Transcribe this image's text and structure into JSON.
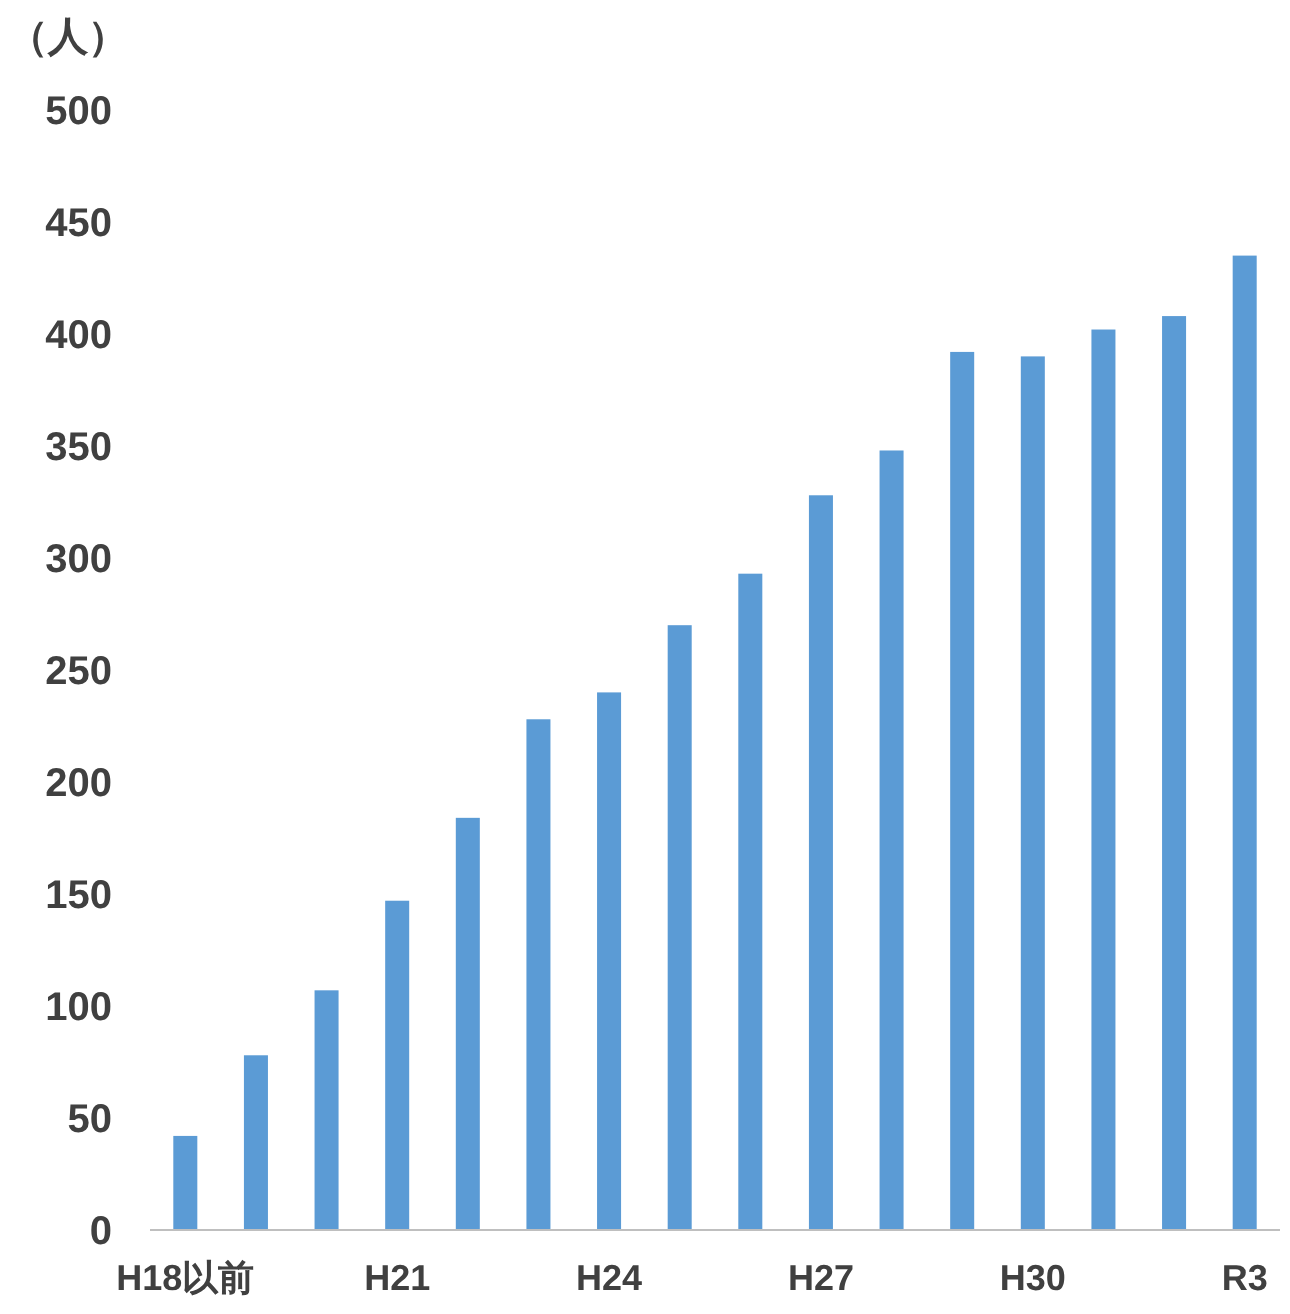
{
  "chart_data": {
    "type": "bar",
    "ylabel": "（人）",
    "categories": [
      "H18以前",
      null,
      null,
      "H21",
      null,
      null,
      "H24",
      null,
      null,
      "H27",
      null,
      null,
      "H30",
      null,
      null,
      "R3"
    ],
    "values": [
      42,
      78,
      107,
      147,
      184,
      228,
      240,
      270,
      293,
      328,
      348,
      392,
      390,
      402,
      408,
      435
    ],
    "color": "#5b9bd5",
    "ylim": [
      0,
      500
    ],
    "yticks": [
      0,
      50,
      100,
      150,
      200,
      250,
      300,
      350,
      400,
      450,
      500
    ]
  }
}
